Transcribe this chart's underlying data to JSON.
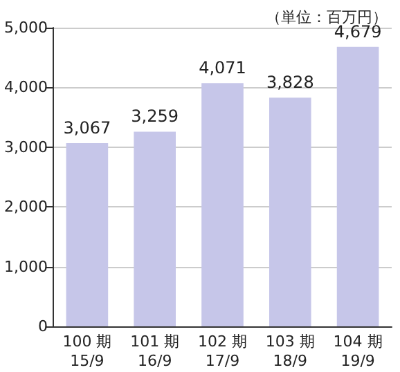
{
  "chart_data": {
    "type": "bar",
    "categories": [
      "100 期\n15/9",
      "101 期\n16/9",
      "102 期\n17/9",
      "103 期\n18/9",
      "104 期\n19/9"
    ],
    "values": [
      3067,
      3259,
      4071,
      3828,
      4679
    ],
    "value_labels": [
      "3,067",
      "3,259",
      "4,071",
      "3,828",
      "4,679"
    ],
    "color": "#c6c6e9",
    "ylim": [
      0,
      5000
    ],
    "yticks": [
      {
        "value": 0,
        "label": "0"
      },
      {
        "value": 1000,
        "label": "1,000"
      },
      {
        "value": 2000,
        "label": "2,000"
      },
      {
        "value": 3000,
        "label": "3,000"
      },
      {
        "value": 4000,
        "label": "4,000"
      },
      {
        "value": 5000,
        "label": "5,000"
      }
    ],
    "grid": "y",
    "annotations": [
      "（単位：百万円）"
    ]
  }
}
